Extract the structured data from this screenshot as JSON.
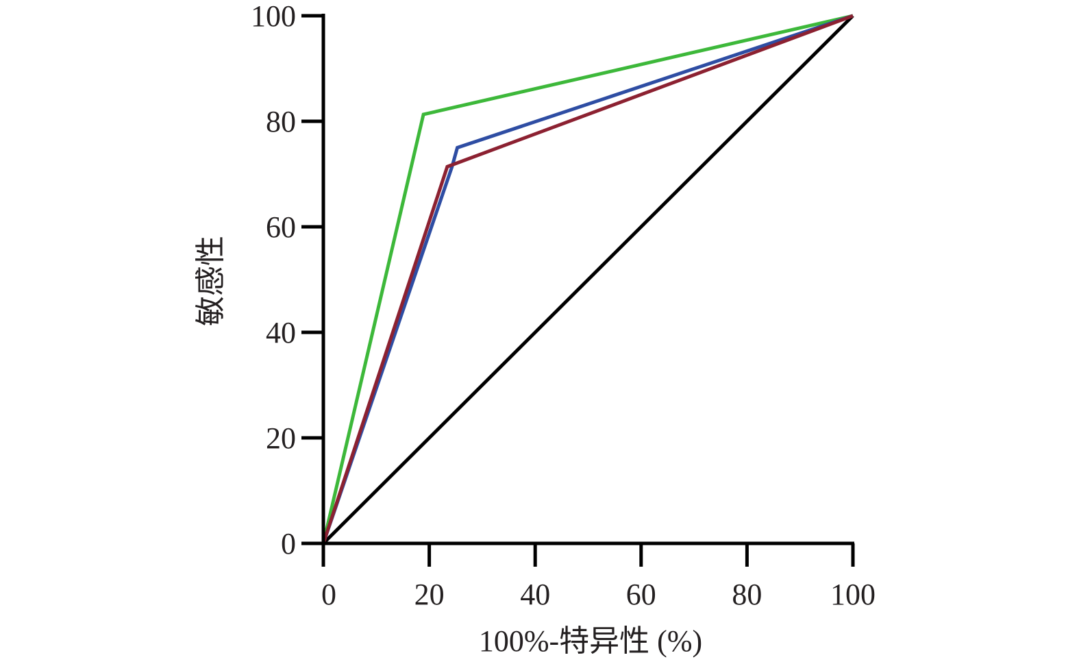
{
  "chart_data": {
    "type": "line",
    "title": "",
    "xlabel": "100%-特异性 (%)",
    "ylabel": "敏感性",
    "xlim": [
      0,
      100
    ],
    "ylim": [
      0,
      100
    ],
    "xticks": [
      "0",
      "20",
      "40",
      "60",
      "80",
      "100"
    ],
    "yticks": [
      "0",
      "20",
      "40",
      "60",
      "80",
      "100"
    ],
    "xtick_values": [
      0,
      20,
      40,
      60,
      80,
      100
    ],
    "ytick_values": [
      0,
      20,
      40,
      60,
      80,
      100
    ],
    "grid": false,
    "series": [
      {
        "name": "reference",
        "color": "#000000",
        "x": [
          0,
          100
        ],
        "y": [
          0,
          100
        ]
      },
      {
        "name": "green",
        "color": "#3db83a",
        "x": [
          0,
          18.9,
          100
        ],
        "y": [
          0,
          81.3,
          100
        ]
      },
      {
        "name": "blue",
        "color": "#2e4da3",
        "x": [
          0,
          24.3,
          25.3,
          100
        ],
        "y": [
          0,
          71.4,
          75.0,
          100
        ]
      },
      {
        "name": "red",
        "color": "#8c2131",
        "x": [
          0,
          23.4,
          100
        ],
        "y": [
          0,
          71.4,
          100
        ]
      }
    ]
  }
}
